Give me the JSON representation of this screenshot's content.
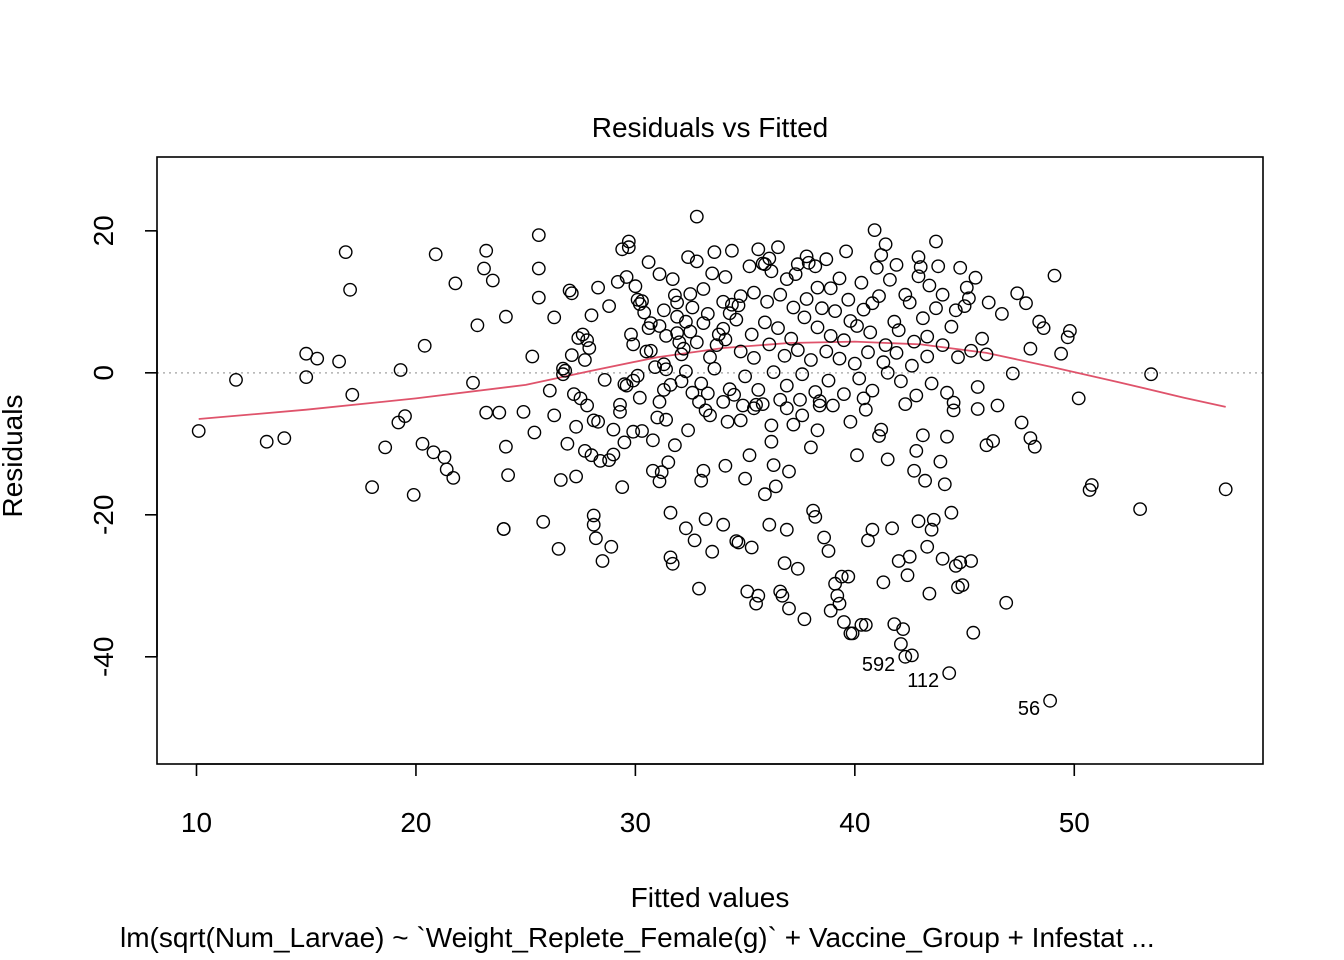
{
  "chart_data": {
    "type": "scatter",
    "title": "Residuals vs Fitted",
    "xlabel": "Fitted values",
    "ylabel": "Residuals",
    "subtitle": "lm(sqrt(Num_Larvae) ~ `Weight_Replete_Female(g)` + Vaccine_Group + Infestat ...",
    "xlim": [
      8.2,
      58.6
    ],
    "ylim": [
      -55.1,
      30.4
    ],
    "xticks": [
      10,
      20,
      30,
      40,
      50
    ],
    "yticks": [
      -40,
      -20,
      0,
      20
    ],
    "grid": false,
    "reference_line": 0,
    "smooth_color": "#DF536B",
    "point_color": "#000000",
    "labeled_points": [
      {
        "label": "592",
        "x": 42.3,
        "y": -40.0
      },
      {
        "label": "112",
        "x": 44.3,
        "y": -42.3
      },
      {
        "label": "56",
        "x": 48.9,
        "y": -46.2
      }
    ],
    "smooth": [
      {
        "x": 10.1,
        "y": -6.5
      },
      {
        "x": 15,
        "y": -5.2
      },
      {
        "x": 20,
        "y": -3.6
      },
      {
        "x": 25,
        "y": -1.7
      },
      {
        "x": 28,
        "y": 0.3
      },
      {
        "x": 31,
        "y": 2.2
      },
      {
        "x": 34,
        "y": 3.5
      },
      {
        "x": 37,
        "y": 4.2
      },
      {
        "x": 40,
        "y": 4.4
      },
      {
        "x": 43,
        "y": 4.0
      },
      {
        "x": 46,
        "y": 2.8
      },
      {
        "x": 49,
        "y": 0.8
      },
      {
        "x": 52,
        "y": -1.3
      },
      {
        "x": 55,
        "y": -3.5
      },
      {
        "x": 56.9,
        "y": -4.8
      }
    ],
    "points": [
      [
        10.1,
        -8.2
      ],
      [
        11.8,
        -1.0
      ],
      [
        13.2,
        -9.7
      ],
      [
        14.0,
        -9.2
      ],
      [
        15.0,
        2.7
      ],
      [
        15.0,
        -0.6
      ],
      [
        15.5,
        2.0
      ],
      [
        16.5,
        1.6
      ],
      [
        16.8,
        17.0
      ],
      [
        17.0,
        11.7
      ],
      [
        17.1,
        -3.1
      ],
      [
        18.0,
        -16.1
      ],
      [
        18.6,
        -10.5
      ],
      [
        19.2,
        -7.0
      ],
      [
        19.3,
        0.4
      ],
      [
        19.5,
        -6.1
      ],
      [
        19.9,
        -17.2
      ],
      [
        20.3,
        -10.0
      ],
      [
        20.4,
        3.8
      ],
      [
        20.8,
        -11.2
      ],
      [
        20.9,
        16.7
      ],
      [
        21.3,
        -11.9
      ],
      [
        21.4,
        -13.6
      ],
      [
        21.7,
        -14.8
      ],
      [
        21.8,
        12.6
      ],
      [
        22.6,
        -1.4
      ],
      [
        22.8,
        6.7
      ],
      [
        23.1,
        14.7
      ],
      [
        23.2,
        17.2
      ],
      [
        23.2,
        -5.6
      ],
      [
        23.5,
        13.0
      ],
      [
        23.8,
        -5.6
      ],
      [
        24.0,
        -22.0
      ],
      [
        24.0,
        -22.0
      ],
      [
        24.1,
        7.9
      ],
      [
        24.1,
        -10.4
      ],
      [
        24.2,
        -14.4
      ],
      [
        24.9,
        -5.5
      ],
      [
        25.3,
        2.3
      ],
      [
        25.4,
        -8.4
      ],
      [
        25.6,
        19.4
      ],
      [
        25.6,
        10.6
      ],
      [
        25.6,
        14.7
      ],
      [
        25.8,
        -21.0
      ],
      [
        26.1,
        -2.5
      ],
      [
        26.3,
        7.8
      ],
      [
        26.3,
        -6.0
      ],
      [
        26.5,
        -24.8
      ],
      [
        26.6,
        -15.1
      ],
      [
        26.7,
        -0.2
      ],
      [
        26.7,
        0.6
      ],
      [
        26.8,
        0.3
      ],
      [
        26.9,
        -10.0
      ],
      [
        27.0,
        11.6
      ],
      [
        27.1,
        2.5
      ],
      [
        27.1,
        11.2
      ],
      [
        27.2,
        -3.0
      ],
      [
        27.3,
        -14.6
      ],
      [
        27.3,
        -7.6
      ],
      [
        27.4,
        4.9
      ],
      [
        27.5,
        -3.6
      ],
      [
        27.6,
        5.4
      ],
      [
        27.7,
        1.8
      ],
      [
        27.7,
        -11.0
      ],
      [
        27.8,
        4.6
      ],
      [
        27.8,
        -4.6
      ],
      [
        27.9,
        3.5
      ],
      [
        28.0,
        -11.6
      ],
      [
        28.0,
        8.1
      ],
      [
        28.1,
        -6.7
      ],
      [
        28.1,
        -20.1
      ],
      [
        28.1,
        -21.4
      ],
      [
        28.2,
        -23.3
      ],
      [
        28.3,
        -6.9
      ],
      [
        28.3,
        12.0
      ],
      [
        28.4,
        -12.4
      ],
      [
        28.5,
        -26.5
      ],
      [
        28.6,
        -1.0
      ],
      [
        28.8,
        -12.3
      ],
      [
        28.8,
        9.4
      ],
      [
        28.9,
        -24.5
      ],
      [
        29.0,
        -8.0
      ],
      [
        29.0,
        -11.5
      ],
      [
        29.2,
        12.8
      ],
      [
        29.3,
        -4.5
      ],
      [
        29.3,
        -5.5
      ],
      [
        29.4,
        -16.1
      ],
      [
        29.4,
        17.4
      ],
      [
        29.5,
        -1.6
      ],
      [
        29.5,
        -9.8
      ],
      [
        29.6,
        -1.8
      ],
      [
        29.6,
        13.5
      ],
      [
        29.7,
        18.5
      ],
      [
        29.7,
        17.7
      ],
      [
        29.8,
        5.4
      ],
      [
        29.9,
        -8.3
      ],
      [
        29.9,
        -1.1
      ],
      [
        30.0,
        12.2
      ],
      [
        30.1,
        10.3
      ],
      [
        30.2,
        9.7
      ],
      [
        30.3,
        -8.2
      ],
      [
        30.3,
        10.1
      ],
      [
        30.5,
        3.0
      ],
      [
        30.6,
        15.6
      ],
      [
        30.6,
        6.3
      ],
      [
        30.7,
        7.0
      ],
      [
        30.8,
        -9.5
      ],
      [
        30.8,
        -13.8
      ],
      [
        31.0,
        -6.3
      ],
      [
        31.1,
        -15.3
      ],
      [
        31.1,
        -4.1
      ],
      [
        31.1,
        13.9
      ],
      [
        31.2,
        -14.0
      ],
      [
        31.3,
        8.8
      ],
      [
        31.3,
        1.2
      ],
      [
        31.4,
        -6.6
      ],
      [
        31.4,
        0.5
      ],
      [
        31.5,
        -12.6
      ],
      [
        31.6,
        -19.7
      ],
      [
        31.6,
        -26.0
      ],
      [
        31.7,
        -26.9
      ],
      [
        31.7,
        13.2
      ],
      [
        31.8,
        -10.2
      ],
      [
        31.9,
        5.6
      ],
      [
        31.9,
        9.9
      ],
      [
        32.0,
        4.3
      ],
      [
        32.1,
        -1.2
      ],
      [
        32.2,
        3.4
      ],
      [
        32.3,
        7.2
      ],
      [
        32.3,
        -21.9
      ],
      [
        32.4,
        -8.1
      ],
      [
        32.5,
        11.1
      ],
      [
        32.6,
        -2.8
      ],
      [
        32.7,
        -23.6
      ],
      [
        32.8,
        15.7
      ],
      [
        32.8,
        22.0
      ],
      [
        32.9,
        -30.4
      ],
      [
        33.0,
        -15.2
      ],
      [
        33.1,
        7.0
      ],
      [
        33.1,
        -13.8
      ],
      [
        33.2,
        -20.6
      ],
      [
        33.3,
        -2.9
      ],
      [
        33.4,
        -6.0
      ],
      [
        33.5,
        -25.2
      ],
      [
        33.6,
        17.0
      ],
      [
        33.7,
        3.9
      ],
      [
        33.8,
        5.4
      ],
      [
        34.0,
        -21.4
      ],
      [
        34.1,
        -13.1
      ],
      [
        34.2,
        -6.9
      ],
      [
        34.3,
        8.4
      ],
      [
        34.4,
        9.6
      ],
      [
        34.6,
        -23.7
      ],
      [
        34.7,
        -23.9
      ],
      [
        34.8,
        10.8
      ],
      [
        34.9,
        -4.6
      ],
      [
        35.0,
        -14.9
      ],
      [
        35.1,
        -30.8
      ],
      [
        35.2,
        -11.6
      ],
      [
        35.3,
        -24.6
      ],
      [
        35.4,
        -5.0
      ],
      [
        35.5,
        -32.5
      ],
      [
        35.6,
        -31.4
      ],
      [
        35.6,
        17.4
      ],
      [
        35.8,
        -4.4
      ],
      [
        35.9,
        15.3
      ],
      [
        35.9,
        -17.1
      ],
      [
        36.1,
        -21.4
      ],
      [
        36.2,
        -9.7
      ],
      [
        36.3,
        -13.0
      ],
      [
        36.4,
        -16.0
      ],
      [
        36.5,
        17.7
      ],
      [
        36.6,
        -30.8
      ],
      [
        36.7,
        -31.4
      ],
      [
        36.8,
        -26.8
      ],
      [
        36.9,
        -22.1
      ],
      [
        37.0,
        -33.2
      ],
      [
        37.0,
        -13.9
      ],
      [
        37.2,
        -7.3
      ],
      [
        37.3,
        13.9
      ],
      [
        37.4,
        -27.6
      ],
      [
        37.5,
        -3.8
      ],
      [
        37.7,
        -34.7
      ],
      [
        37.8,
        16.4
      ],
      [
        38.0,
        -10.5
      ],
      [
        38.1,
        -19.4
      ],
      [
        38.2,
        -20.3
      ],
      [
        38.3,
        12.0
      ],
      [
        38.4,
        -4.6
      ],
      [
        38.6,
        -23.2
      ],
      [
        38.7,
        16.0
      ],
      [
        38.8,
        -25.1
      ],
      [
        38.9,
        -33.5
      ],
      [
        39.1,
        -29.7
      ],
      [
        39.2,
        -31.4
      ],
      [
        39.3,
        -32.5
      ],
      [
        39.4,
        -28.7
      ],
      [
        39.5,
        -35.1
      ],
      [
        39.7,
        -28.7
      ],
      [
        39.8,
        -36.7
      ],
      [
        39.9,
        -36.7
      ],
      [
        40.1,
        -11.6
      ],
      [
        40.3,
        -35.5
      ],
      [
        40.5,
        -35.5
      ],
      [
        40.6,
        -23.6
      ],
      [
        40.8,
        -22.1
      ],
      [
        40.9,
        20.1
      ],
      [
        41.0,
        14.8
      ],
      [
        41.1,
        -8.9
      ],
      [
        41.3,
        -29.5
      ],
      [
        41.4,
        18.1
      ],
      [
        41.5,
        -12.2
      ],
      [
        41.7,
        -21.9
      ],
      [
        41.8,
        -35.4
      ],
      [
        41.9,
        15.2
      ],
      [
        42.0,
        -26.5
      ],
      [
        42.1,
        -38.2
      ],
      [
        42.2,
        -36.1
      ],
      [
        42.3,
        -40.0
      ],
      [
        42.4,
        -28.5
      ],
      [
        42.5,
        -25.9
      ],
      [
        42.6,
        -39.8
      ],
      [
        42.7,
        -13.8
      ],
      [
        42.8,
        -11.0
      ],
      [
        42.9,
        -20.9
      ],
      [
        43.0,
        14.9
      ],
      [
        43.1,
        -8.8
      ],
      [
        43.2,
        -15.2
      ],
      [
        43.3,
        -24.5
      ],
      [
        43.4,
        -31.1
      ],
      [
        43.5,
        -22.1
      ],
      [
        43.6,
        -20.7
      ],
      [
        43.7,
        18.5
      ],
      [
        43.8,
        15.0
      ],
      [
        43.9,
        -12.5
      ],
      [
        44.0,
        -26.2
      ],
      [
        44.1,
        -15.7
      ],
      [
        44.2,
        -9.0
      ],
      [
        44.3,
        -42.3
      ],
      [
        44.4,
        -19.7
      ],
      [
        44.5,
        -5.3
      ],
      [
        44.6,
        -27.2
      ],
      [
        44.7,
        -30.2
      ],
      [
        44.8,
        -26.7
      ],
      [
        44.9,
        -29.9
      ],
      [
        45.0,
        9.4
      ],
      [
        45.1,
        12.0
      ],
      [
        45.3,
        -26.5
      ],
      [
        45.4,
        -36.6
      ],
      [
        45.5,
        13.4
      ],
      [
        45.6,
        -5.1
      ],
      [
        45.8,
        4.8
      ],
      [
        46.0,
        -10.2
      ],
      [
        46.1,
        9.9
      ],
      [
        46.3,
        -9.6
      ],
      [
        46.5,
        -4.6
      ],
      [
        46.7,
        8.3
      ],
      [
        46.9,
        -32.4
      ],
      [
        47.2,
        -0.1
      ],
      [
        47.4,
        11.2
      ],
      [
        47.6,
        -7.0
      ],
      [
        47.8,
        9.8
      ],
      [
        48.0,
        -9.2
      ],
      [
        48.0,
        3.4
      ],
      [
        48.2,
        -10.4
      ],
      [
        48.4,
        7.2
      ],
      [
        48.6,
        6.3
      ],
      [
        48.9,
        -46.2
      ],
      [
        49.1,
        13.7
      ],
      [
        49.4,
        2.7
      ],
      [
        49.7,
        5.0
      ],
      [
        49.8,
        5.9
      ],
      [
        50.2,
        -3.6
      ],
      [
        50.7,
        -16.5
      ],
      [
        50.8,
        -15.8
      ],
      [
        53.0,
        -19.2
      ],
      [
        53.5,
        -0.2
      ],
      [
        56.9,
        -16.4
      ],
      [
        33.5,
        14.0
      ],
      [
        34.1,
        13.5
      ],
      [
        35.2,
        15.0
      ],
      [
        35.8,
        15.4
      ],
      [
        36.2,
        14.3
      ],
      [
        36.9,
        13.2
      ],
      [
        37.4,
        15.3
      ],
      [
        38.2,
        15.0
      ],
      [
        38.9,
        11.9
      ],
      [
        39.3,
        13.3
      ],
      [
        39.7,
        10.3
      ],
      [
        40.3,
        12.7
      ],
      [
        40.8,
        9.8
      ],
      [
        41.6,
        13.1
      ],
      [
        42.3,
        11.0
      ],
      [
        42.9,
        13.6
      ],
      [
        43.4,
        12.3
      ],
      [
        44.0,
        11.0
      ],
      [
        44.6,
        8.8
      ],
      [
        45.2,
        10.5
      ],
      [
        31.8,
        10.9
      ],
      [
        32.6,
        9.2
      ],
      [
        33.1,
        11.8
      ],
      [
        34.0,
        10.0
      ],
      [
        34.7,
        9.5
      ],
      [
        35.4,
        11.3
      ],
      [
        36.0,
        10.0
      ],
      [
        36.6,
        11.0
      ],
      [
        37.2,
        9.2
      ],
      [
        37.8,
        10.4
      ],
      [
        38.5,
        9.1
      ],
      [
        39.1,
        8.7
      ],
      [
        39.8,
        7.3
      ],
      [
        40.4,
        8.9
      ],
      [
        41.1,
        10.8
      ],
      [
        41.8,
        7.2
      ],
      [
        42.5,
        9.9
      ],
      [
        43.1,
        7.7
      ],
      [
        43.7,
        9.1
      ],
      [
        44.4,
        6.5
      ],
      [
        30.4,
        8.5
      ],
      [
        31.1,
        6.6
      ],
      [
        31.9,
        7.9
      ],
      [
        32.5,
        5.8
      ],
      [
        33.3,
        8.3
      ],
      [
        34.0,
        6.2
      ],
      [
        34.6,
        7.5
      ],
      [
        35.3,
        5.4
      ],
      [
        35.9,
        7.1
      ],
      [
        36.5,
        6.3
      ],
      [
        37.1,
        4.8
      ],
      [
        37.7,
        7.8
      ],
      [
        38.3,
        6.4
      ],
      [
        38.9,
        5.2
      ],
      [
        39.5,
        4.6
      ],
      [
        40.1,
        6.6
      ],
      [
        40.7,
        5.7
      ],
      [
        41.4,
        3.9
      ],
      [
        42.0,
        6.0
      ],
      [
        42.7,
        4.4
      ],
      [
        43.3,
        5.1
      ],
      [
        44.0,
        3.9
      ],
      [
        44.7,
        2.2
      ],
      [
        45.3,
        3.1
      ],
      [
        46.0,
        2.6
      ],
      [
        29.9,
        4.0
      ],
      [
        30.7,
        3.1
      ],
      [
        31.4,
        5.2
      ],
      [
        32.1,
        2.6
      ],
      [
        32.8,
        4.3
      ],
      [
        33.4,
        2.2
      ],
      [
        34.1,
        4.7
      ],
      [
        34.8,
        3.0
      ],
      [
        35.4,
        2.1
      ],
      [
        36.1,
        4.0
      ],
      [
        36.8,
        2.4
      ],
      [
        37.4,
        3.2
      ],
      [
        38.0,
        1.8
      ],
      [
        38.7,
        3.0
      ],
      [
        39.3,
        2.0
      ],
      [
        40.0,
        1.3
      ],
      [
        40.6,
        2.9
      ],
      [
        41.3,
        1.5
      ],
      [
        41.9,
        2.8
      ],
      [
        42.6,
        1.0
      ],
      [
        43.3,
        2.3
      ],
      [
        30.1,
        -0.4
      ],
      [
        30.9,
        0.8
      ],
      [
        31.6,
        -1.7
      ],
      [
        32.3,
        0.2
      ],
      [
        33.0,
        -1.5
      ],
      [
        33.6,
        0.6
      ],
      [
        34.3,
        -2.3
      ],
      [
        35.0,
        -0.5
      ],
      [
        35.6,
        -2.4
      ],
      [
        36.3,
        0.1
      ],
      [
        36.9,
        -1.8
      ],
      [
        37.6,
        -0.2
      ],
      [
        38.2,
        -2.7
      ],
      [
        38.8,
        -1.1
      ],
      [
        39.5,
        -3.0
      ],
      [
        40.2,
        -0.8
      ],
      [
        40.8,
        -2.5
      ],
      [
        41.5,
        0.0
      ],
      [
        42.1,
        -1.2
      ],
      [
        42.8,
        -3.2
      ],
      [
        43.5,
        -1.5
      ],
      [
        44.2,
        -2.8
      ],
      [
        33.2,
        -5.3
      ],
      [
        34.0,
        -4.1
      ],
      [
        34.8,
        -6.7
      ],
      [
        35.5,
        -4.5
      ],
      [
        36.2,
        -7.4
      ],
      [
        36.9,
        -5.0
      ],
      [
        37.6,
        -6.0
      ],
      [
        38.3,
        -8.1
      ],
      [
        39.0,
        -4.6
      ],
      [
        39.8,
        -6.9
      ],
      [
        40.5,
        -5.2
      ],
      [
        41.2,
        -8.0
      ],
      [
        32.4,
        16.3
      ],
      [
        34.4,
        17.2
      ],
      [
        36.1,
        16.1
      ],
      [
        37.9,
        15.5
      ],
      [
        39.6,
        17.1
      ],
      [
        41.2,
        16.6
      ],
      [
        42.9,
        16.3
      ],
      [
        44.8,
        14.8
      ],
      [
        30.2,
        -3.5
      ],
      [
        31.3,
        -2.4
      ],
      [
        32.9,
        -4.1
      ],
      [
        34.5,
        -3.1
      ],
      [
        36.6,
        -3.8
      ],
      [
        38.4,
        -4.0
      ],
      [
        40.4,
        -3.6
      ],
      [
        42.3,
        -4.4
      ],
      [
        44.5,
        -4.2
      ],
      [
        45.6,
        -2.0
      ]
    ]
  }
}
